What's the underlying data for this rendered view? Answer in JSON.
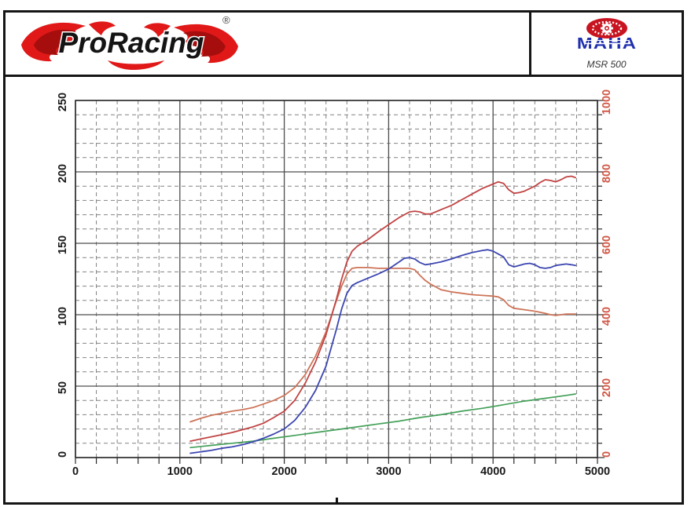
{
  "header": {
    "brand": "ProRacing",
    "registered_mark": "®",
    "dyno_brand": "MAHA",
    "dyno_model": "MSR 500"
  },
  "chart_data": {
    "type": "line",
    "title": "",
    "xlabel": "",
    "ylabel_left": "",
    "ylabel_right": "",
    "x_axis": {
      "min": 0,
      "max": 5000,
      "major_step": 1000,
      "minor_step": 200,
      "tick_labels": [
        "0",
        "1000",
        "2000",
        "3000",
        "4000",
        "5000"
      ],
      "color": "#1a1a1a"
    },
    "y_axis_left": {
      "min": 0,
      "max": 250,
      "major_step": 50,
      "minor_step": 10,
      "tick_labels": [
        "0",
        "50",
        "100",
        "150",
        "200",
        "250"
      ],
      "color": "#1a1a1a"
    },
    "y_axis_right": {
      "min": 0,
      "max": 1000,
      "label_step": 200,
      "tick_labels": [
        "0",
        "200",
        "400",
        "600",
        "800",
        "1000"
      ],
      "color": "#d05a48"
    },
    "grid": {
      "major_color": "#4d4d4d",
      "minor_color": "#828282",
      "minor_dash": "5 4",
      "on": true
    },
    "legend": {
      "visible": false
    },
    "series": [
      {
        "name": "green-curve",
        "color": "#43a058",
        "width": 1.7,
        "points": [
          [
            1100,
            7
          ],
          [
            1300,
            8.5
          ],
          [
            1500,
            10
          ],
          [
            1700,
            11.5
          ],
          [
            1900,
            13.5
          ],
          [
            2100,
            15.5
          ],
          [
            2300,
            17.5
          ],
          [
            2500,
            19.5
          ],
          [
            2700,
            21.5
          ],
          [
            2900,
            23.5
          ],
          [
            3100,
            25.5
          ],
          [
            3300,
            28
          ],
          [
            3500,
            30
          ],
          [
            3700,
            32.5
          ],
          [
            3900,
            34.5
          ],
          [
            4100,
            37
          ],
          [
            4300,
            39.5
          ],
          [
            4500,
            41.5
          ],
          [
            4700,
            43.5
          ],
          [
            4790,
            44.5
          ]
        ]
      },
      {
        "name": "orange-curve",
        "color": "#cd7458",
        "width": 1.8,
        "points": [
          [
            1100,
            25
          ],
          [
            1200,
            27.5
          ],
          [
            1300,
            29.5
          ],
          [
            1400,
            31
          ],
          [
            1500,
            32.5
          ],
          [
            1600,
            33.5
          ],
          [
            1700,
            35
          ],
          [
            1800,
            37.5
          ],
          [
            1900,
            40
          ],
          [
            2000,
            43.5
          ],
          [
            2100,
            49
          ],
          [
            2200,
            58
          ],
          [
            2300,
            71
          ],
          [
            2400,
            88
          ],
          [
            2500,
            110
          ],
          [
            2550,
            120
          ],
          [
            2600,
            128.5
          ],
          [
            2650,
            132.5
          ],
          [
            2700,
            133
          ],
          [
            2800,
            133
          ],
          [
            2900,
            132.5
          ],
          [
            3000,
            132.5
          ],
          [
            3100,
            132.5
          ],
          [
            3200,
            132.5
          ],
          [
            3250,
            131.5
          ],
          [
            3300,
            127.5
          ],
          [
            3350,
            124
          ],
          [
            3400,
            121.5
          ],
          [
            3450,
            119.5
          ],
          [
            3500,
            117.5
          ],
          [
            3600,
            116
          ],
          [
            3700,
            115
          ],
          [
            3800,
            114
          ],
          [
            3900,
            113.5
          ],
          [
            4000,
            113
          ],
          [
            4050,
            112.5
          ],
          [
            4100,
            110.5
          ],
          [
            4150,
            106.5
          ],
          [
            4200,
            104.5
          ],
          [
            4300,
            103.5
          ],
          [
            4400,
            102.5
          ],
          [
            4500,
            101
          ],
          [
            4550,
            100
          ],
          [
            4600,
            99.5
          ],
          [
            4650,
            100
          ],
          [
            4700,
            100.5
          ],
          [
            4790,
            100.5
          ]
        ]
      },
      {
        "name": "red-curve",
        "color": "#c14444",
        "width": 1.8,
        "points": [
          [
            1100,
            11.5
          ],
          [
            1200,
            13
          ],
          [
            1300,
            14.5
          ],
          [
            1400,
            16
          ],
          [
            1500,
            17.5
          ],
          [
            1600,
            19.5
          ],
          [
            1700,
            21.5
          ],
          [
            1800,
            24
          ],
          [
            1900,
            28
          ],
          [
            2000,
            32.5
          ],
          [
            2100,
            40
          ],
          [
            2200,
            52
          ],
          [
            2300,
            67
          ],
          [
            2400,
            86
          ],
          [
            2500,
            111
          ],
          [
            2550,
            125
          ],
          [
            2600,
            137
          ],
          [
            2650,
            144.5
          ],
          [
            2700,
            148
          ],
          [
            2800,
            152.5
          ],
          [
            2900,
            158
          ],
          [
            3000,
            163
          ],
          [
            3100,
            168
          ],
          [
            3200,
            172
          ],
          [
            3250,
            172.5
          ],
          [
            3300,
            172
          ],
          [
            3350,
            170.5
          ],
          [
            3400,
            170.5
          ],
          [
            3450,
            172
          ],
          [
            3500,
            173.5
          ],
          [
            3600,
            176.5
          ],
          [
            3700,
            180.5
          ],
          [
            3800,
            184.5
          ],
          [
            3900,
            188.5
          ],
          [
            4000,
            191.5
          ],
          [
            4050,
            193
          ],
          [
            4100,
            192
          ],
          [
            4150,
            187.5
          ],
          [
            4200,
            185
          ],
          [
            4250,
            185.5
          ],
          [
            4300,
            186.5
          ],
          [
            4400,
            190
          ],
          [
            4450,
            192.5
          ],
          [
            4500,
            194.5
          ],
          [
            4550,
            194
          ],
          [
            4600,
            193
          ],
          [
            4650,
            194.5
          ],
          [
            4700,
            196.5
          ],
          [
            4750,
            197
          ],
          [
            4790,
            196
          ]
        ]
      },
      {
        "name": "blue-curve",
        "color": "#3c46b0",
        "width": 1.8,
        "points": [
          [
            1100,
            3
          ],
          [
            1200,
            4
          ],
          [
            1300,
            5
          ],
          [
            1400,
            6.5
          ],
          [
            1500,
            7.5
          ],
          [
            1600,
            9
          ],
          [
            1700,
            11
          ],
          [
            1800,
            13.5
          ],
          [
            1900,
            16.5
          ],
          [
            2000,
            20
          ],
          [
            2100,
            26
          ],
          [
            2200,
            35
          ],
          [
            2300,
            47
          ],
          [
            2400,
            64
          ],
          [
            2500,
            90
          ],
          [
            2550,
            104
          ],
          [
            2600,
            115
          ],
          [
            2650,
            120.5
          ],
          [
            2700,
            122.5
          ],
          [
            2800,
            125.5
          ],
          [
            2900,
            128.5
          ],
          [
            3000,
            132
          ],
          [
            3100,
            137
          ],
          [
            3150,
            139.5
          ],
          [
            3200,
            140
          ],
          [
            3250,
            139
          ],
          [
            3300,
            136.5
          ],
          [
            3350,
            135
          ],
          [
            3400,
            135.5
          ],
          [
            3500,
            137
          ],
          [
            3600,
            139
          ],
          [
            3700,
            141.5
          ],
          [
            3800,
            143.5
          ],
          [
            3900,
            145
          ],
          [
            3950,
            145.5
          ],
          [
            4000,
            144.5
          ],
          [
            4100,
            140.5
          ],
          [
            4150,
            135
          ],
          [
            4200,
            133.5
          ],
          [
            4250,
            134.5
          ],
          [
            4300,
            135.5
          ],
          [
            4350,
            136
          ],
          [
            4400,
            135
          ],
          [
            4450,
            133
          ],
          [
            4500,
            132.5
          ],
          [
            4550,
            133
          ],
          [
            4600,
            134.5
          ],
          [
            4700,
            135.5
          ],
          [
            4750,
            135
          ],
          [
            4790,
            134.5
          ]
        ]
      }
    ]
  }
}
